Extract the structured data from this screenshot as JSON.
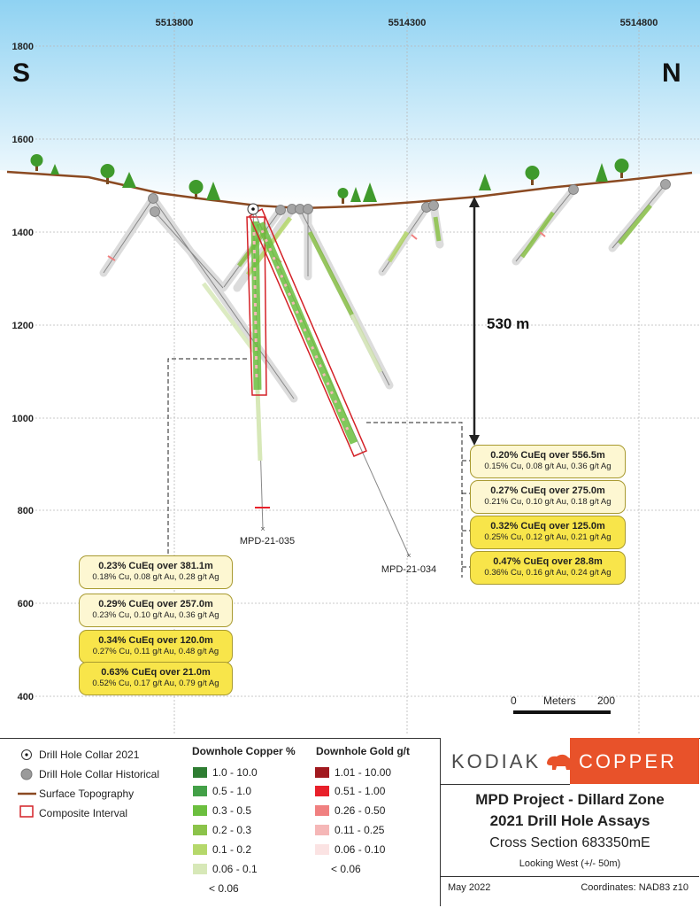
{
  "map": {
    "easting_labels": [
      "5513800",
      "5514300",
      "5514800"
    ],
    "elevation_labels": [
      "1800",
      "1600",
      "1400",
      "1200",
      "1000",
      "800",
      "600",
      "400"
    ],
    "direction_left": "S",
    "direction_right": "N",
    "depth_label": "530 m",
    "scale": {
      "min": "0",
      "unit": "Meters",
      "max": "200"
    },
    "hole_labels": {
      "h035": "MPD-21-035",
      "h034": "MPD-21-034"
    },
    "colors": {
      "sky_top": "#8fd2f2",
      "topography": "#8b4a22",
      "composite": "#d42127",
      "callout_light": "#fdf7d2",
      "callout_bright": "#f8e54a",
      "copper_high": "#2e7d32",
      "gold_high": "#a1191e",
      "kodiak_orange": "#e8522a"
    }
  },
  "callouts": {
    "left": [
      {
        "headline": "0.23% CuEq over 381.1m",
        "detail": "0.18% Cu, 0.08 g/t Au, 0.28 g/t Ag",
        "style": "light"
      },
      {
        "headline": "0.29% CuEq over 257.0m",
        "detail": "0.23% Cu, 0.10 g/t Au, 0.36 g/t Ag",
        "style": "light"
      },
      {
        "headline": "0.34% CuEq over 120.0m",
        "detail": "0.27% Cu, 0.11 g/t Au, 0.48 g/t Ag",
        "style": "bright"
      },
      {
        "headline": "0.63% CuEq over 21.0m",
        "detail": "0.52% Cu, 0.17 g/t Au, 0.79 g/t Ag",
        "style": "bright"
      }
    ],
    "right": [
      {
        "headline": "0.20% CuEq over 556.5m",
        "detail": "0.15% Cu, 0.08 g/t Au, 0.36 g/t Ag",
        "style": "light"
      },
      {
        "headline": "0.27% CuEq over 275.0m",
        "detail": "0.21% Cu, 0.10 g/t Au, 0.18 g/t Ag",
        "style": "light"
      },
      {
        "headline": "0.32% CuEq over 125.0m",
        "detail": "0.25% Cu, 0.12 g/t Au, 0.21 g/t Ag",
        "style": "bright"
      },
      {
        "headline": "0.47% CuEq over 28.8m",
        "detail": "0.36% Cu, 0.16 g/t Au, 0.24 g/t Ag",
        "style": "bright"
      }
    ]
  },
  "legend": {
    "symbols": [
      "Drill Hole Collar 2021",
      "Drill Hole Collar Historical",
      "Surface Topography",
      "Composite Interval"
    ],
    "copper_title": "Downhole Copper %",
    "copper": [
      {
        "label": "1.0 - 10.0",
        "color": "#2e7d32"
      },
      {
        "label": "0.5 - 1.0",
        "color": "#43a047"
      },
      {
        "label": "0.3 - 0.5",
        "color": "#6cbf3f"
      },
      {
        "label": "0.2 - 0.3",
        "color": "#8bc34a"
      },
      {
        "label": "0.1 - 0.2",
        "color": "#b5d86b"
      },
      {
        "label": "0.06 - 0.1",
        "color": "#d7e8b8"
      },
      {
        "label": "< 0.06",
        "color": ""
      }
    ],
    "gold_title": "Downhole Gold g/t",
    "gold": [
      {
        "label": "1.01 - 10.00",
        "color": "#a1191e"
      },
      {
        "label": "0.51 - 1.00",
        "color": "#e8202a"
      },
      {
        "label": "0.26 - 0.50",
        "color": "#f08080"
      },
      {
        "label": "0.11 - 0.25",
        "color": "#f5b7b7"
      },
      {
        "label": "0.06 - 0.10",
        "color": "#fbe3e3"
      },
      {
        "label": "< 0.06",
        "color": ""
      }
    ]
  },
  "title_block": {
    "logo_left": "KODIAK",
    "logo_right": "COPPER",
    "project": "MPD Project - Dillard Zone",
    "subtitle": "2021 Drill Hole Assays",
    "section": "Cross Section 683350mE",
    "view": "Looking West (+/- 50m)",
    "date": "May 2022",
    "coordinates": "Coordinates: NAD83 z10"
  }
}
